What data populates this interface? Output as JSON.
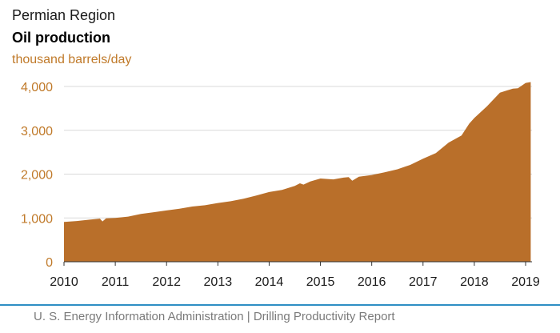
{
  "region": "Permian Region",
  "title": "Oil production",
  "unit": "thousand barrels/day",
  "source": "U. S. Energy Information Administration  |  Drilling Productivity Report",
  "colors": {
    "fill": "#b96f2a",
    "accent": "#c07a2a",
    "footer_line": "#2e8fc4"
  },
  "chart_data": {
    "type": "area",
    "title": "Oil production",
    "ylabel": "thousand barrels/day",
    "xlabel": "",
    "ylim": [
      0,
      4000
    ],
    "xlim": [
      2010.0,
      2019.1
    ],
    "y_ticks": [
      "0",
      "1,000",
      "2,000",
      "3,000",
      "4,000"
    ],
    "x_ticks": [
      "2010",
      "2011",
      "2012",
      "2013",
      "2014",
      "2015",
      "2016",
      "2017",
      "2018",
      "2019"
    ],
    "grid": "horizontal",
    "series": [
      {
        "x": [
          2010.0,
          2010.25,
          2010.5,
          2010.7,
          2010.75,
          2010.82,
          2011.0,
          2011.25,
          2011.5,
          2011.75,
          2012.0,
          2012.25,
          2012.5,
          2012.75,
          2013.0,
          2013.25,
          2013.5,
          2013.75,
          2014.0,
          2014.25,
          2014.5,
          2014.6,
          2014.67,
          2014.8,
          2015.0,
          2015.25,
          2015.45,
          2015.55,
          2015.62,
          2015.75,
          2016.0,
          2016.25,
          2016.5,
          2016.75,
          2017.0,
          2017.25,
          2017.5,
          2017.75,
          2017.9,
          2018.0,
          2018.25,
          2018.5,
          2018.75,
          2018.85,
          2019.0,
          2019.1
        ],
        "values": [
          910,
          930,
          960,
          985,
          920,
          990,
          1000,
          1030,
          1090,
          1130,
          1170,
          1210,
          1260,
          1290,
          1340,
          1380,
          1440,
          1510,
          1590,
          1640,
          1730,
          1790,
          1760,
          1830,
          1900,
          1880,
          1920,
          1930,
          1850,
          1940,
          1980,
          2040,
          2110,
          2210,
          2350,
          2480,
          2720,
          2880,
          3150,
          3280,
          3550,
          3860,
          3950,
          3960,
          4080,
          4100
        ]
      }
    ]
  }
}
